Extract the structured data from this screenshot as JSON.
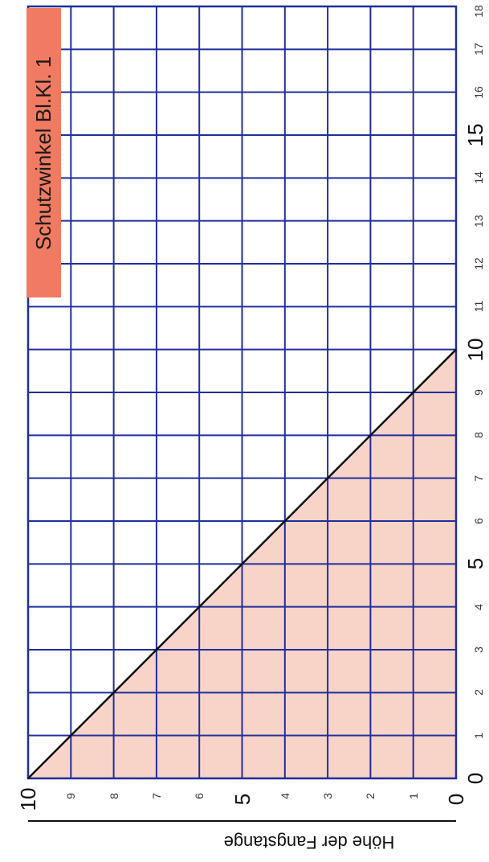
{
  "chart_data": {
    "type": "line",
    "title": "Schutzwinkel Bl.Kl. 1",
    "xlabel": "",
    "ylabel": "Höhe der Fangstange",
    "xlim": [
      0,
      18
    ],
    "ylim": [
      0,
      10
    ],
    "x_ticks": [
      "0",
      "1",
      "2",
      "3",
      "4",
      "5",
      "6",
      "7",
      "8",
      "9",
      "10",
      "11",
      "12",
      "13",
      "14",
      "15",
      "16",
      "17",
      "18"
    ],
    "y_ticks": [
      "0",
      "1",
      "2",
      "3",
      "4",
      "5",
      "6",
      "7",
      "8",
      "9",
      "10"
    ],
    "grid": true,
    "protected_area_color": "#f8d3c8",
    "grid_color": "#1f2f9c",
    "line_color": "#111111",
    "badge_color": "#f07a62",
    "series": [
      {
        "values": [
          [
            0,
            10
          ],
          [
            10,
            0
          ]
        ]
      },
      {
        "values": [
          [
            1,
            9
          ],
          [
            10,
            0
          ]
        ]
      },
      {
        "values": [
          [
            2,
            8
          ],
          [
            10,
            0
          ]
        ]
      },
      {
        "values": [
          [
            3,
            7
          ],
          [
            10,
            0
          ]
        ]
      },
      {
        "values": [
          [
            4,
            6
          ],
          [
            10,
            0
          ]
        ]
      },
      {
        "values": [
          [
            5,
            5
          ],
          [
            10,
            0
          ]
        ]
      },
      {
        "values": [
          [
            6,
            4
          ],
          [
            10,
            0
          ]
        ]
      },
      {
        "values": [
          [
            7,
            3
          ],
          [
            10,
            0
          ]
        ]
      },
      {
        "values": [
          [
            8,
            2
          ],
          [
            10,
            0
          ]
        ]
      },
      {
        "values": [
          [
            9,
            1
          ],
          [
            10,
            0
          ]
        ]
      }
    ]
  }
}
